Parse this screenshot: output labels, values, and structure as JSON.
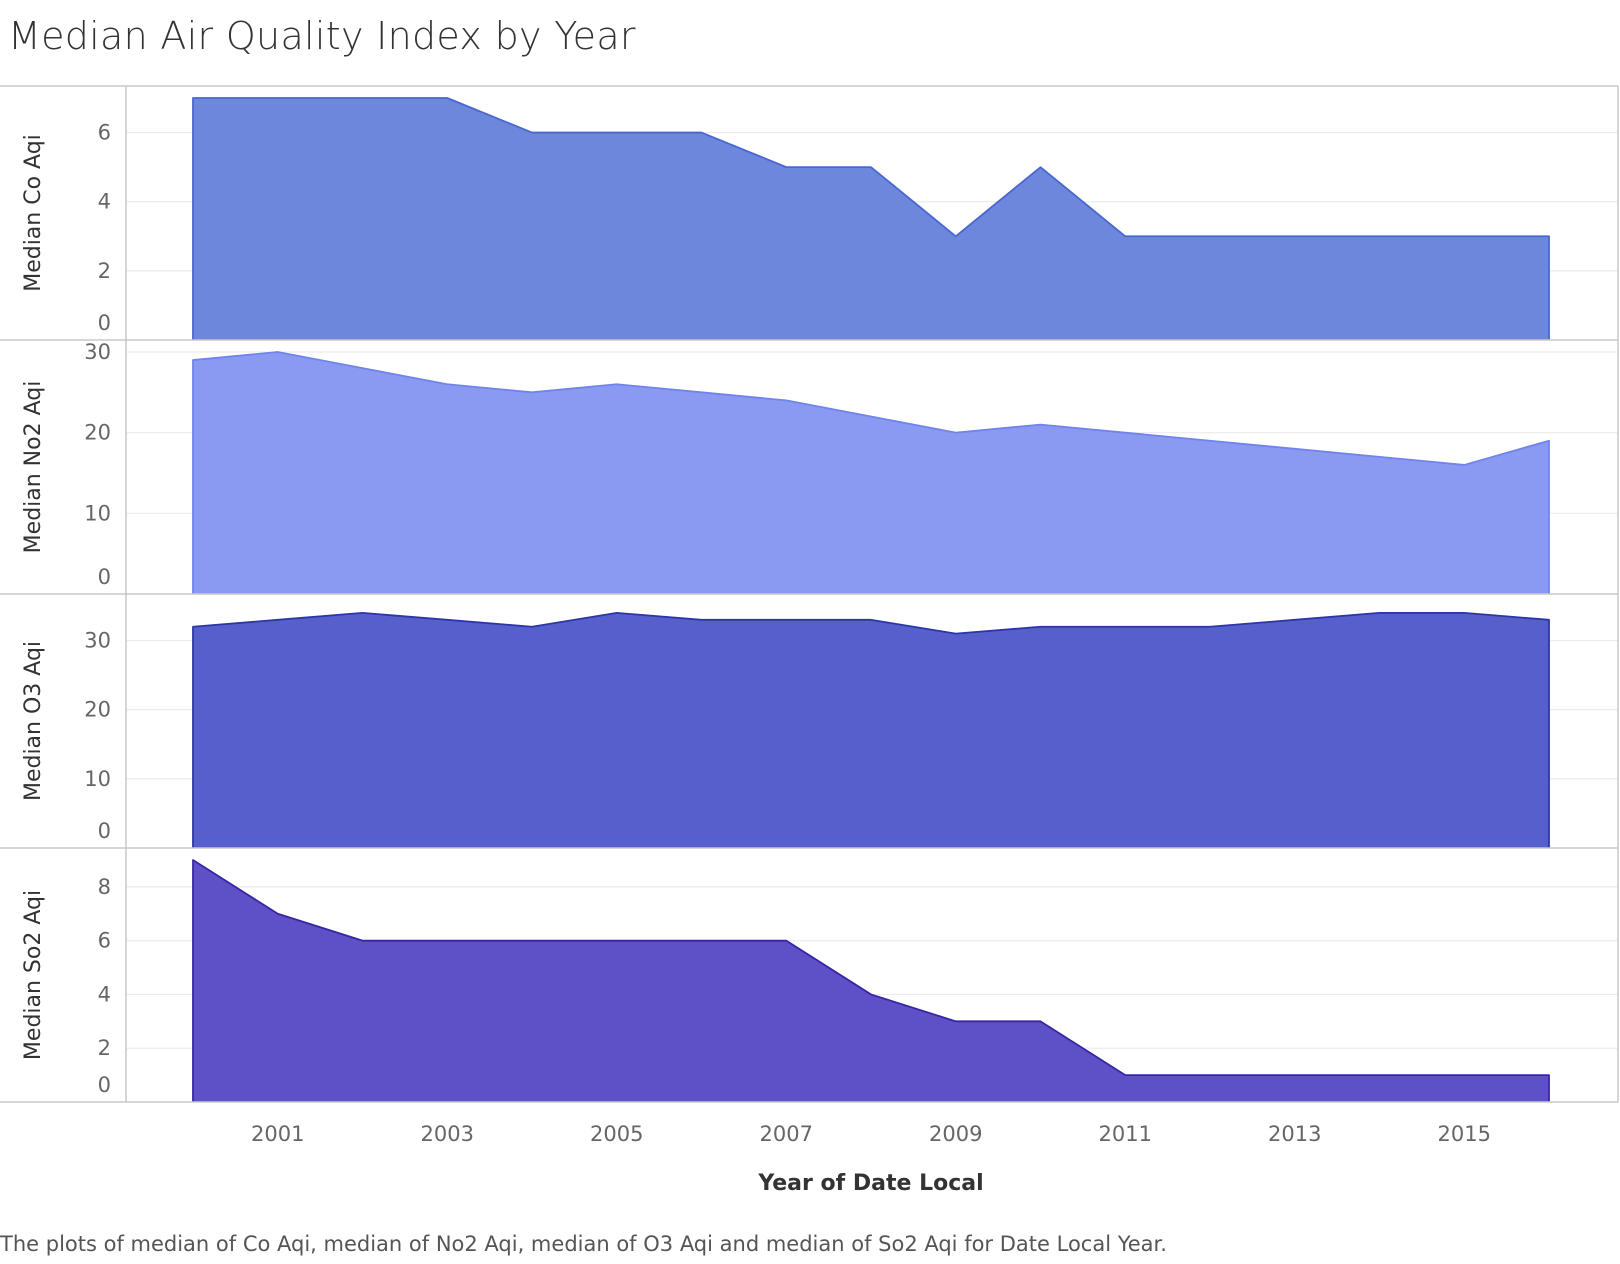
{
  "title": "Median Air Quality Index by Year",
  "caption": "The plots of median of Co Aqi, median of No2 Aqi, median of O3 Aqi and median of So2 Aqi for Date Local Year.",
  "chart_data": {
    "type": "area",
    "title": "Median Air Quality Index by Year",
    "xlabel": "Year of Date Local",
    "x": [
      2000,
      2001,
      2002,
      2003,
      2004,
      2005,
      2006,
      2007,
      2008,
      2009,
      2010,
      2011,
      2012,
      2013,
      2014,
      2015,
      2016
    ],
    "x_ticks": [
      "2001",
      "2003",
      "2005",
      "2007",
      "2009",
      "2011",
      "2013",
      "2015"
    ],
    "grid": true,
    "panels": [
      {
        "ylabel": "Median Co Aqi",
        "ylim": [
          0,
          7
        ],
        "yticks": [
          "0",
          "2",
          "4",
          "6"
        ],
        "fill": "#6d87dd",
        "stroke": "#4a66d0",
        "values": [
          7,
          7,
          7,
          7,
          6,
          6,
          6,
          5,
          5,
          3,
          5,
          3,
          3,
          3,
          3,
          3,
          3
        ]
      },
      {
        "ylabel": "Median No2 Aqi",
        "ylim": [
          0,
          30
        ],
        "yticks": [
          "0",
          "10",
          "20",
          "30"
        ],
        "fill": "#8a9af2",
        "stroke": "#7084ea",
        "values": [
          29,
          30,
          28,
          26,
          25,
          26,
          25,
          24,
          22,
          20,
          21,
          20,
          19,
          18,
          17,
          16,
          19
        ]
      },
      {
        "ylabel": "Median O3 Aqi",
        "ylim": [
          0,
          35
        ],
        "yticks": [
          "0",
          "10",
          "20",
          "30"
        ],
        "fill": "#5660cc",
        "stroke": "#2e36a6",
        "values": [
          32,
          33,
          34,
          33,
          32,
          34,
          33,
          33,
          33,
          31,
          32,
          32,
          32,
          33,
          34,
          34,
          33
        ]
      },
      {
        "ylabel": "Median So2 Aqi",
        "ylim": [
          0,
          9
        ],
        "yticks": [
          "0",
          "2",
          "4",
          "6",
          "8"
        ],
        "fill": "#5e50c6",
        "stroke": "#3626a6",
        "values": [
          9,
          7,
          6,
          6,
          6,
          6,
          6,
          6,
          4,
          3,
          3,
          1,
          1,
          1,
          1,
          1,
          1
        ]
      }
    ]
  }
}
